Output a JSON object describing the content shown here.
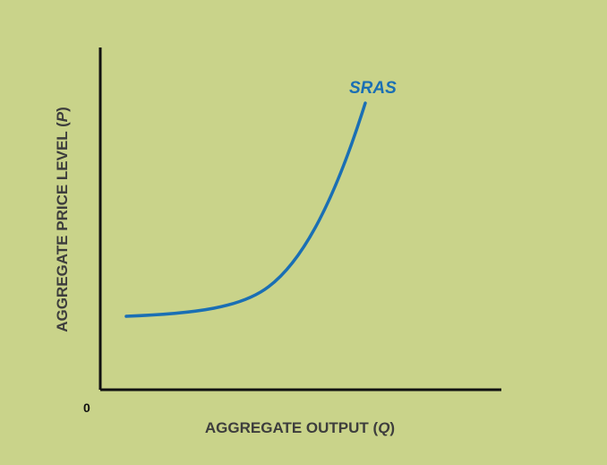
{
  "diagram": {
    "x_axis": {
      "label_prefix": "AGGREGATE OUTPUT (",
      "label_symbol": "Q",
      "label_suffix": ")"
    },
    "y_axis": {
      "label_prefix": "AGGREGATE PRICE LEVEL (",
      "label_symbol": "P",
      "label_suffix": ")"
    },
    "origin_label": "0",
    "curve": {
      "label": "SRAS",
      "color": "#1a6fb4"
    },
    "background_color": "#c9d38a"
  }
}
